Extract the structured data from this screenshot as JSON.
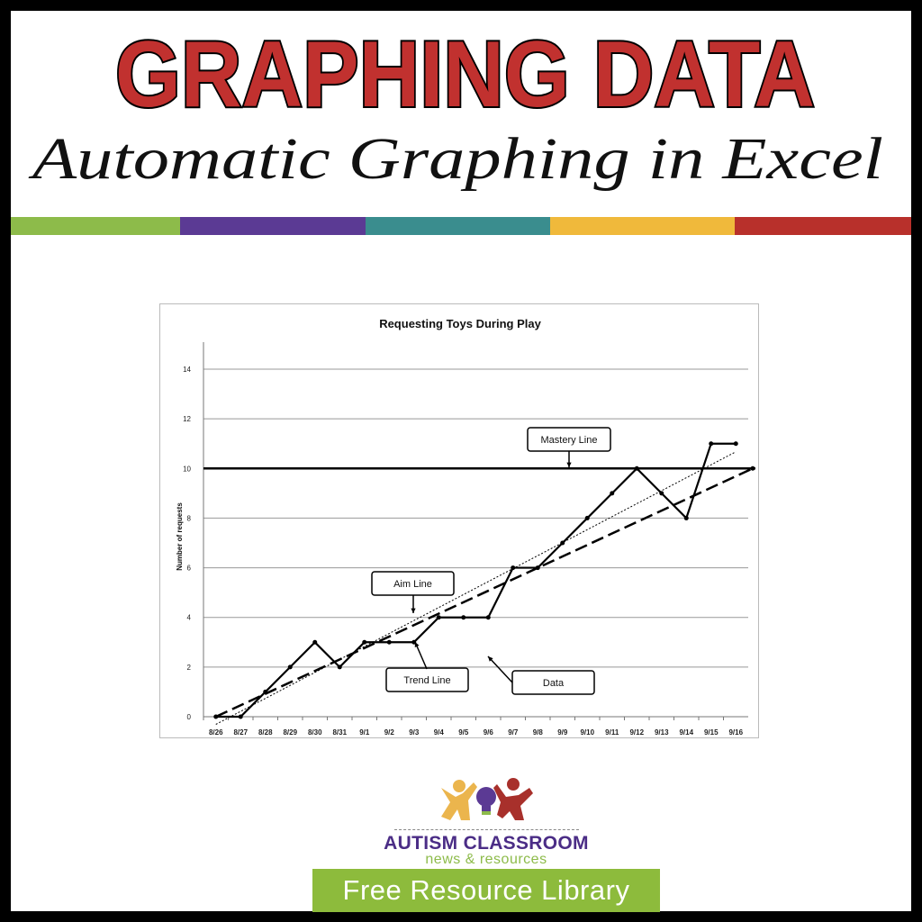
{
  "header": {
    "title": "GRAPHING DATA",
    "subtitle": "Automatic Graphing in Excel",
    "title_color": "#c1312f",
    "color_bar": [
      "#8dbb4a",
      "#5b3a94",
      "#3a8d8e",
      "#f0b93b",
      "#b8302b"
    ]
  },
  "chart_data": {
    "type": "line",
    "title": "Requesting Toys During Play",
    "xlabel": "",
    "ylabel": "Number of requests",
    "ylim": [
      0,
      14
    ],
    "yticks": [
      0,
      2,
      4,
      6,
      8,
      10,
      12,
      14
    ],
    "grid": true,
    "categories": [
      "8/26",
      "8/27",
      "8/28",
      "8/29",
      "8/30",
      "8/31",
      "9/1",
      "9/2",
      "9/3",
      "9/4",
      "9/5",
      "9/6",
      "9/7",
      "9/8",
      "9/9",
      "9/10",
      "9/11",
      "9/12",
      "9/13",
      "9/14",
      "9/15",
      "9/16"
    ],
    "series": [
      {
        "name": "Data",
        "style": "solid-markers",
        "values": [
          0,
          0,
          1,
          2,
          3,
          2,
          3,
          3,
          3,
          4,
          4,
          4,
          6,
          6,
          7,
          8,
          9,
          10,
          9,
          8,
          11,
          11
        ]
      }
    ],
    "mastery_line": {
      "value": 10
    },
    "aim_line": {
      "start": 0,
      "end": 10
    },
    "trend_line": {
      "type": "linear",
      "style": "dotted"
    },
    "annotations": [
      {
        "id": "mastery",
        "text": "Mastery Line"
      },
      {
        "id": "aim",
        "text": "Aim Line"
      },
      {
        "id": "trend",
        "text": "Trend Line"
      },
      {
        "id": "data",
        "text": "Data"
      }
    ]
  },
  "logo": {
    "name": "AUTISM CLASSROOM",
    "tagline": "news & resources",
    "banner": "Free Resource Library",
    "colors": {
      "yellow": "#ebb54d",
      "purple": "#5b3a94",
      "red": "#a8302b",
      "green": "#8dbb3c"
    }
  }
}
